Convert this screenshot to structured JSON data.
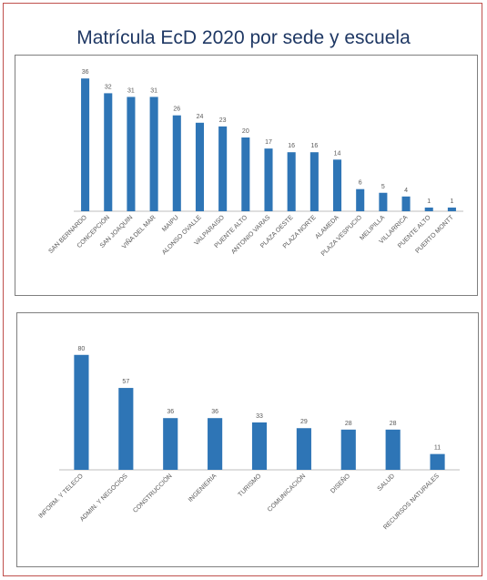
{
  "title": "Matrícula EcD 2020 por sede y escuela",
  "colors": {
    "bar": "#2e75b6",
    "frame": "#c0504d",
    "title": "#1f3864"
  },
  "chart_data": [
    {
      "type": "bar",
      "title": "",
      "categories": [
        "SAN BERNARDO",
        "CONCEPCIÓN",
        "SAN JOAQUIN",
        "VIÑA DEL MAR",
        "MAIPU",
        "ALONSO OVALLE",
        "VALPARAISO",
        "PUENTE ALTO",
        "ANTONIO VARAS",
        "PLAZA OESTE",
        "PLAZA NORTE",
        "ALAMEDA",
        "PLAZA VESPUCIO",
        "MELIPILLA",
        "VILLARRICA",
        "PUENTE ALTO",
        "PUERTO MONTT"
      ],
      "values": [
        36,
        32,
        31,
        31,
        26,
        24,
        23,
        20,
        17,
        16,
        16,
        14,
        6,
        5,
        4,
        1,
        1
      ],
      "ylim": [
        0,
        40
      ],
      "grid": false,
      "legend": false
    },
    {
      "type": "bar",
      "title": "",
      "categories": [
        "INFORM. Y TELECO",
        "ADMIN. Y NEGOCIOS",
        "CONSTRUCCIÓN",
        "INGENIERIA",
        "TURISMO",
        "COMUNICACIÓN",
        "DISEÑO",
        "SALUD",
        "RECURSOS NATURALES"
      ],
      "values": [
        80,
        57,
        36,
        36,
        33,
        29,
        28,
        28,
        11
      ],
      "ylim": [
        0,
        90
      ],
      "grid": false,
      "legend": false
    }
  ]
}
